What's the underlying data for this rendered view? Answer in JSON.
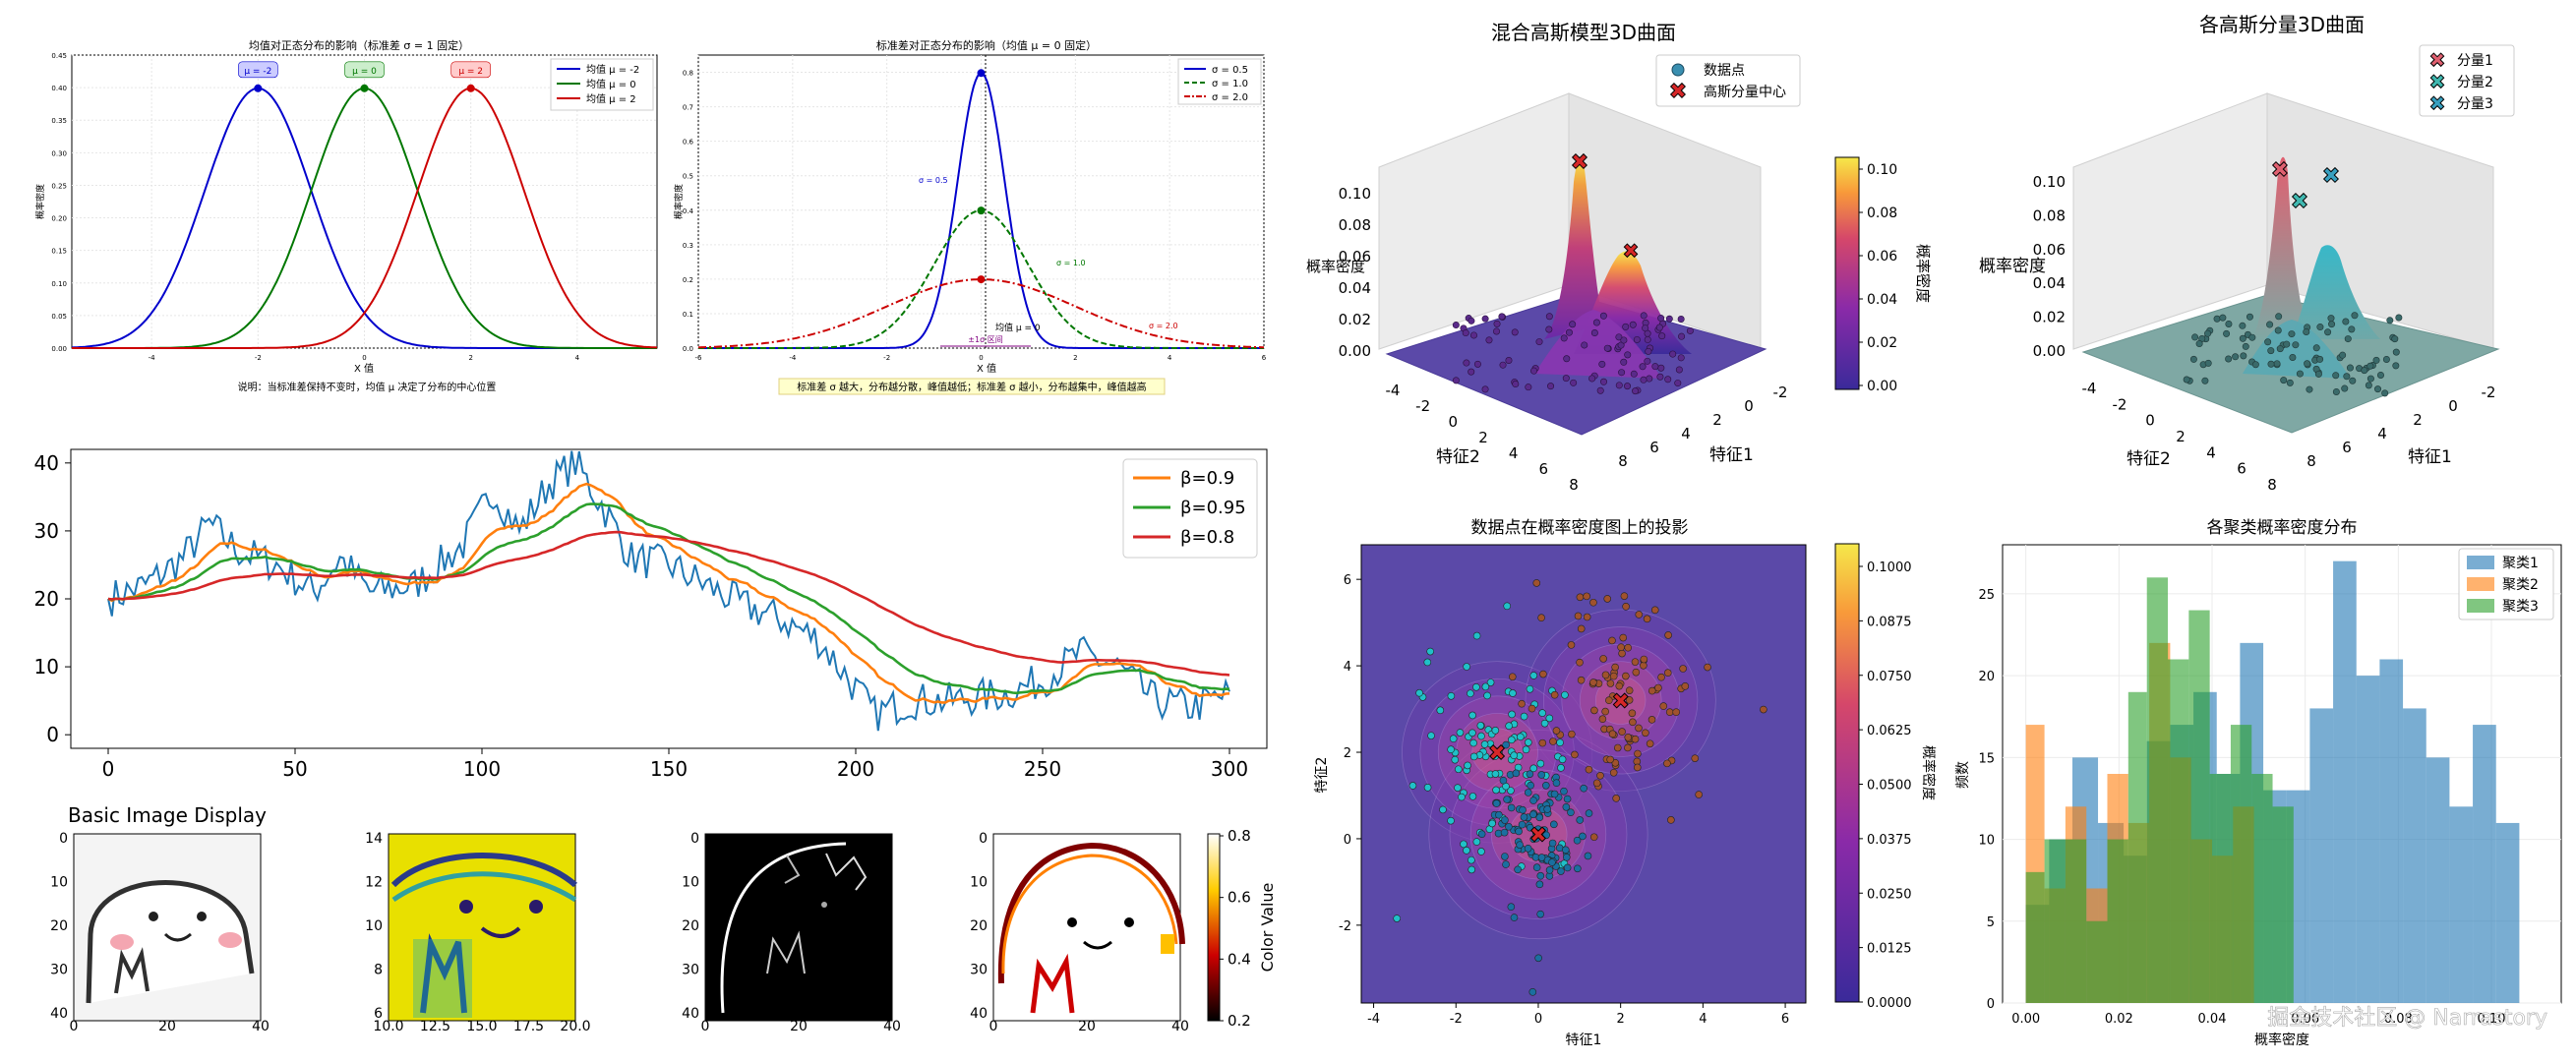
{
  "colors": {
    "blue": "#1f77b4",
    "orange": "#ff7f0e",
    "green": "#2ca02c",
    "red": "#d62728",
    "navyBlue": "#0000cc",
    "darkGreen": "#007700",
    "darkRed": "#cc0000",
    "surface": "#5b49a8"
  },
  "watermark": "掘金技术社区 @ Narrastory",
  "chart_data": [
    {
      "id": "mean-effect",
      "type": "line",
      "title": "均值对正态分布的影响（标准差 σ = 1 固定）",
      "xlabel": "X 值",
      "ylabel": "概率密度",
      "xlim": [
        -5.5,
        5.5
      ],
      "ylim": [
        0,
        0.45
      ],
      "xticks": [
        "-4",
        "-2",
        "0",
        "2",
        "4"
      ],
      "yticks": [
        "0.00",
        "0.05",
        "0.10",
        "0.15",
        "0.20",
        "0.25",
        "0.30",
        "0.35",
        "0.40",
        "0.45"
      ],
      "series": [
        {
          "name": "均值 μ = -2",
          "mu": -2,
          "sigma": 1
        },
        {
          "name": "均值 μ = 0",
          "mu": 0,
          "sigma": 1
        },
        {
          "name": "均值 μ = 2",
          "mu": 2,
          "sigma": 1
        }
      ],
      "annotations": [
        "μ = -2",
        "μ = 0",
        "μ = 2"
      ],
      "note": "说明：当标准差保持不变时，均值 μ 决定了分布的中心位置"
    },
    {
      "id": "std-effect",
      "type": "line",
      "title": "标准差对正态分布的影响（均值 μ = 0 固定）",
      "xlabel": "X 值",
      "ylabel": "概率密度",
      "xlim": [
        -6,
        6
      ],
      "ylim": [
        0,
        0.85
      ],
      "xticks": [
        "-6",
        "-4",
        "-2",
        "0",
        "2",
        "4",
        "6"
      ],
      "yticks": [
        "0.0",
        "0.1",
        "0.2",
        "0.3",
        "0.4",
        "0.5",
        "0.6",
        "0.7",
        "0.8"
      ],
      "series": [
        {
          "name": "σ = 0.5",
          "mu": 0,
          "sigma": 0.5
        },
        {
          "name": "σ = 1.0",
          "mu": 0,
          "sigma": 1.0
        },
        {
          "name": "σ = 2.0",
          "mu": 0,
          "sigma": 2.0
        }
      ],
      "annotations": [
        "σ = 0.5",
        "σ = 1.0",
        "σ = 2.0",
        "均值 μ = 0",
        "±1σ 区间"
      ],
      "note": "标准差 σ 越大，分布越分散，峰值越低；标准差 σ 越小，分布越集中，峰值越高"
    },
    {
      "id": "ewma",
      "type": "line",
      "title": "",
      "xlim": [
        -10,
        310
      ],
      "ylim": [
        -2,
        42
      ],
      "xticks": [
        0,
        50,
        100,
        150,
        200,
        250,
        300
      ],
      "yticks": [
        0,
        10,
        20,
        30,
        40
      ],
      "raw_keypoints": [
        [
          0,
          20
        ],
        [
          10,
          22
        ],
        [
          20,
          26
        ],
        [
          27,
          31
        ],
        [
          35,
          27
        ],
        [
          45,
          25
        ],
        [
          55,
          21
        ],
        [
          62,
          26
        ],
        [
          70,
          21
        ],
        [
          82,
          22
        ],
        [
          95,
          28
        ],
        [
          103,
          36
        ],
        [
          110,
          30
        ],
        [
          118,
          37
        ],
        [
          125,
          40
        ],
        [
          133,
          33
        ],
        [
          140,
          26
        ],
        [
          150,
          25
        ],
        [
          160,
          22
        ],
        [
          170,
          19
        ],
        [
          180,
          17
        ],
        [
          190,
          14
        ],
        [
          197,
          9
        ],
        [
          205,
          3
        ],
        [
          215,
          5
        ],
        [
          225,
          5
        ],
        [
          240,
          6
        ],
        [
          250,
          8
        ],
        [
          260,
          12
        ],
        [
          270,
          10
        ],
        [
          280,
          5
        ],
        [
          290,
          4
        ],
        [
          300,
          6
        ]
      ],
      "series": [
        {
          "name": "β=0.9",
          "beta": 0.9
        },
        {
          "name": "β=0.95",
          "beta": 0.95
        },
        {
          "name": "β=0.8",
          "beta": 0.8
        }
      ]
    },
    {
      "id": "mixture-3d",
      "type": "surface",
      "title": "混合高斯模型3D曲面",
      "xlabel": "特征1",
      "ylabel": "特征2",
      "zlabel": "概率密度",
      "zticks": [
        "0.00",
        "0.02",
        "0.04",
        "0.06",
        "0.08",
        "0.10"
      ],
      "axticks": [
        "-4",
        "-2",
        "0",
        "2",
        "4",
        "6",
        "8"
      ],
      "legend": [
        "数据点",
        "高斯分量中心"
      ],
      "colorbar": {
        "label": "概率密度",
        "ticks": [
          "0.00",
          "0.02",
          "0.04",
          "0.06",
          "0.08",
          "0.10"
        ]
      }
    },
    {
      "id": "components-3d",
      "type": "surface",
      "title": "各高斯分量3D曲面",
      "xlabel": "特征1",
      "ylabel": "特征2",
      "zlabel": "概率密度",
      "zticks": [
        "0.00",
        "0.02",
        "0.04",
        "0.06",
        "0.08",
        "0.10"
      ],
      "axticks": [
        "-4",
        "-2",
        "0",
        "2",
        "4",
        "6",
        "8"
      ],
      "legend": [
        "分量1",
        "分量2",
        "分量3"
      ]
    },
    {
      "id": "projection",
      "type": "scatter",
      "title": "数据点在概率密度图上的投影",
      "xlabel": "特征1",
      "ylabel": "特征2",
      "xlim": [
        -4.3,
        6.5
      ],
      "ylim": [
        -3.8,
        6.8
      ],
      "xticks": [
        -4,
        -2,
        0,
        2,
        4,
        6
      ],
      "yticks": [
        -2,
        0,
        2,
        4,
        6
      ],
      "centers": [
        [
          -1,
          2
        ],
        [
          2,
          3.2
        ],
        [
          0,
          0.1
        ]
      ],
      "colorbar": {
        "label": "概率密度",
        "ticks": [
          "0.0000",
          "0.0125",
          "0.0250",
          "0.0375",
          "0.0500",
          "0.0625",
          "0.0750",
          "0.0875",
          "0.1000"
        ]
      }
    },
    {
      "id": "cluster-hist",
      "type": "bar",
      "title": "各聚类概率密度分布",
      "xlabel": "概率密度",
      "ylabel": "频数",
      "xlim": [
        -0.005,
        0.115
      ],
      "ylim": [
        0,
        28
      ],
      "xticks": [
        "0.00",
        "0.02",
        "0.04",
        "0.06",
        "0.08",
        "0.10"
      ],
      "yticks": [
        0,
        5,
        10,
        15,
        20,
        25
      ],
      "series": [
        {
          "name": "聚类1",
          "bins": [
            [
              0,
              0.005,
              6
            ],
            [
              0.005,
              0.01,
              10
            ],
            [
              0.01,
              0.0155,
              15
            ],
            [
              0.0155,
              0.021,
              11
            ],
            [
              0.021,
              0.026,
              9
            ],
            [
              0.026,
              0.031,
              16
            ],
            [
              0.031,
              0.036,
              17
            ],
            [
              0.036,
              0.041,
              19
            ],
            [
              0.041,
              0.046,
              14
            ],
            [
              0.046,
              0.051,
              22
            ],
            [
              0.051,
              0.056,
              13
            ],
            [
              0.056,
              0.061,
              13
            ],
            [
              0.061,
              0.066,
              18
            ],
            [
              0.066,
              0.071,
              27
            ],
            [
              0.071,
              0.076,
              20
            ],
            [
              0.076,
              0.081,
              21
            ],
            [
              0.081,
              0.086,
              18
            ],
            [
              0.086,
              0.091,
              15
            ],
            [
              0.091,
              0.096,
              12
            ],
            [
              0.096,
              0.101,
              17
            ],
            [
              0.101,
              0.106,
              11
            ]
          ]
        },
        {
          "name": "聚类2",
          "bins": [
            [
              0,
              0.004,
              17
            ],
            [
              0.004,
              0.0085,
              7
            ],
            [
              0.0085,
              0.013,
              12
            ],
            [
              0.013,
              0.0175,
              7
            ],
            [
              0.0175,
              0.022,
              14
            ],
            [
              0.022,
              0.0265,
              11
            ],
            [
              0.0265,
              0.031,
              22
            ],
            [
              0.031,
              0.0355,
              15
            ],
            [
              0.0355,
              0.04,
              10
            ],
            [
              0.04,
              0.0445,
              9
            ],
            [
              0.0445,
              0.049,
              12
            ]
          ]
        },
        {
          "name": "聚类3",
          "bins": [
            [
              0,
              0.004,
              8
            ],
            [
              0.004,
              0.0085,
              10
            ],
            [
              0.0085,
              0.013,
              10
            ],
            [
              0.013,
              0.0175,
              5
            ],
            [
              0.0175,
              0.022,
              10
            ],
            [
              0.022,
              0.026,
              19
            ],
            [
              0.026,
              0.0305,
              26
            ],
            [
              0.0305,
              0.035,
              21
            ],
            [
              0.035,
              0.0395,
              24
            ],
            [
              0.0395,
              0.044,
              14
            ],
            [
              0.044,
              0.0485,
              17
            ],
            [
              0.0485,
              0.053,
              14
            ],
            [
              0.053,
              0.0575,
              12
            ]
          ]
        }
      ]
    },
    {
      "id": "img-basic",
      "type": "image",
      "title": "Basic Image Display",
      "xticks": [
        "0",
        "20",
        "40"
      ],
      "yticks": [
        "0",
        "10",
        "20",
        "30",
        "40"
      ]
    },
    {
      "id": "img-crop",
      "type": "image",
      "title": "",
      "xticks": [
        "10.0",
        "12.5",
        "15.0",
        "17.5",
        "20.0"
      ],
      "yticks": [
        "6",
        "8",
        "10",
        "12",
        "14"
      ]
    },
    {
      "id": "img-edges",
      "type": "image",
      "title": "",
      "xticks": [
        "0",
        "20",
        "40"
      ],
      "yticks": [
        "0",
        "10",
        "20",
        "30",
        "40"
      ]
    },
    {
      "id": "img-hot",
      "type": "image",
      "title": "",
      "xticks": [
        "0",
        "20",
        "40"
      ],
      "yticks": [
        "0",
        "10",
        "20",
        "30",
        "40"
      ],
      "colorbar": {
        "label": "Color Value",
        "ticks": [
          "0.2",
          "0.4",
          "0.6",
          "0.8"
        ]
      }
    }
  ]
}
